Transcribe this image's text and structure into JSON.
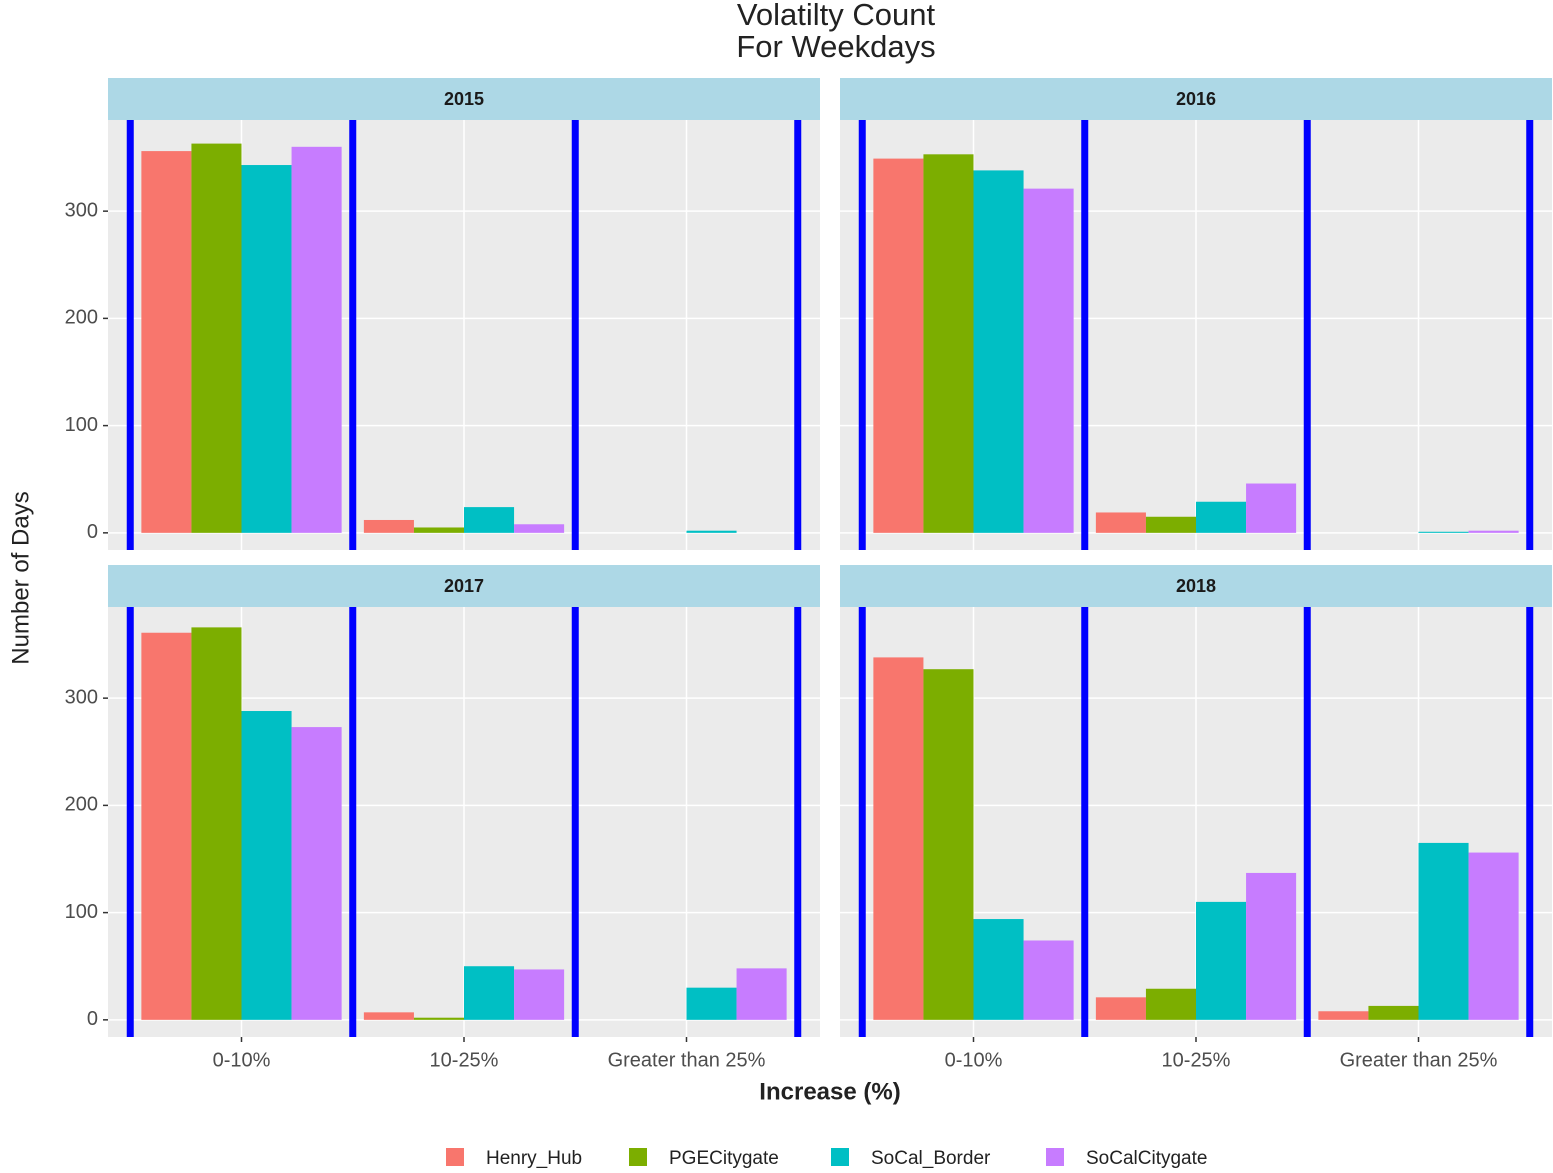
{
  "chart_data": {
    "type": "bar",
    "title": "Volatilty Count",
    "subtitle": "For Weekdays",
    "x_label": "Increase (%)",
    "y_label": "Number of Days",
    "categories": [
      "0-10%",
      "10-25%",
      "Greater than 25%"
    ],
    "series": [
      {
        "name": "Henry_Hub",
        "color": "#f8766d"
      },
      {
        "name": "PGECitygate",
        "color": "#7cae00"
      },
      {
        "name": "SoCal_Border",
        "color": "#00bfc4"
      },
      {
        "name": "SoCalCitygate",
        "color": "#c77cff"
      }
    ],
    "ylim": [
      -16,
      385
    ],
    "yticks": [
      0,
      100,
      200,
      300
    ],
    "grid": true,
    "separator_color": "#0000ff",
    "strip_color": "#add8e6",
    "panel_color": "#ebebeb",
    "legend": "bottom",
    "panels": [
      {
        "title": "2015",
        "values": [
          [
            356,
            12,
            0
          ],
          [
            363,
            5,
            0
          ],
          [
            343,
            24,
            2
          ],
          [
            360,
            8,
            0
          ]
        ]
      },
      {
        "title": "2016",
        "values": [
          [
            349,
            19,
            0
          ],
          [
            353,
            15,
            0
          ],
          [
            338,
            29,
            1
          ],
          [
            321,
            46,
            2
          ]
        ]
      },
      {
        "title": "2017",
        "values": [
          [
            361,
            7,
            0
          ],
          [
            366,
            2,
            0
          ],
          [
            288,
            50,
            30
          ],
          [
            273,
            47,
            48
          ]
        ]
      },
      {
        "title": "2018",
        "values": [
          [
            338,
            21,
            8
          ],
          [
            327,
            29,
            13
          ],
          [
            94,
            110,
            165
          ],
          [
            74,
            137,
            156
          ]
        ]
      }
    ]
  }
}
